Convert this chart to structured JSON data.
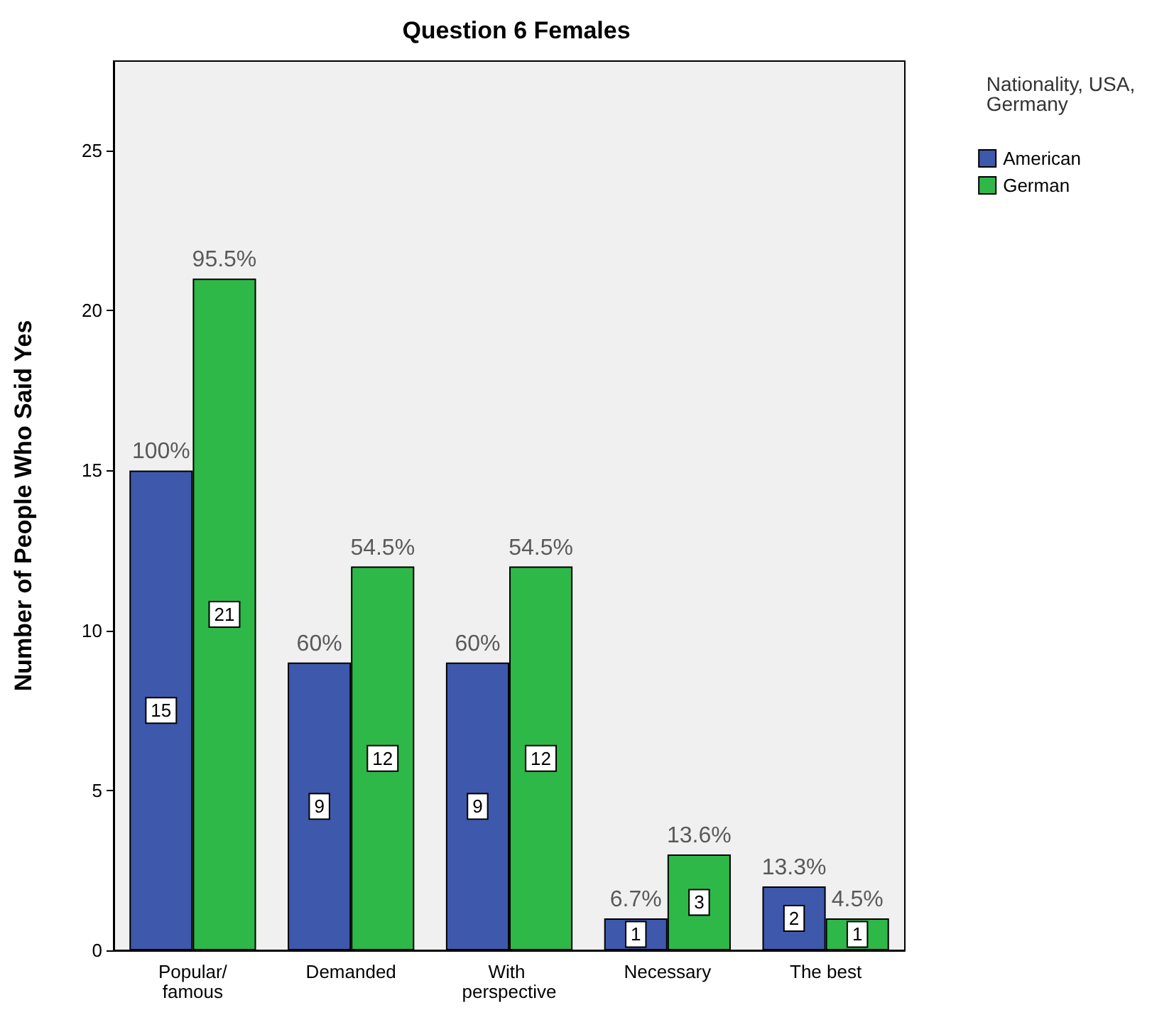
{
  "chart_data": {
    "type": "bar",
    "title": "Question 6 Females",
    "ylabel": "Number of People Who Said Yes",
    "legend_title": "Nationality, USA, Germany",
    "categories": [
      "Popular/famous",
      "Demanded",
      "With perspective",
      "Necessary",
      "The best"
    ],
    "series": [
      {
        "name": "American",
        "color": "#3e58ac",
        "values": [
          15,
          9,
          9,
          1,
          2
        ]
      },
      {
        "name": "German",
        "color": "#2eb848",
        "values": [
          21,
          12,
          12,
          3,
          1
        ]
      }
    ],
    "annotations": [
      {
        "text": "100%",
        "x": "Popular/famous",
        "y": 15
      },
      {
        "text": "60%",
        "x": "Demanded",
        "y": 9
      },
      {
        "text": "60%",
        "x": "With perspective",
        "y": 9
      },
      {
        "text": "6.7%",
        "x": "Necessary",
        "y": 1
      },
      {
        "text": "13.3%",
        "x": "The best",
        "y": 2
      },
      {
        "text": "95.5%",
        "x": "Popular/famous",
        "y": 21
      },
      {
        "text": "54.5%",
        "x": "Demanded",
        "y": 12
      },
      {
        "text": "54.5%",
        "x": "With perspective",
        "y": 12
      },
      {
        "text": "13.6%",
        "x": "Necessary",
        "y": 3
      },
      {
        "text": "4.5%",
        "x": "The best",
        "y": 1
      }
    ],
    "ylim": [
      0,
      27.8
    ],
    "yticks": [
      0,
      5,
      10,
      15,
      20,
      25
    ],
    "grid": false,
    "legend": "top right",
    "data_labels": true
  }
}
